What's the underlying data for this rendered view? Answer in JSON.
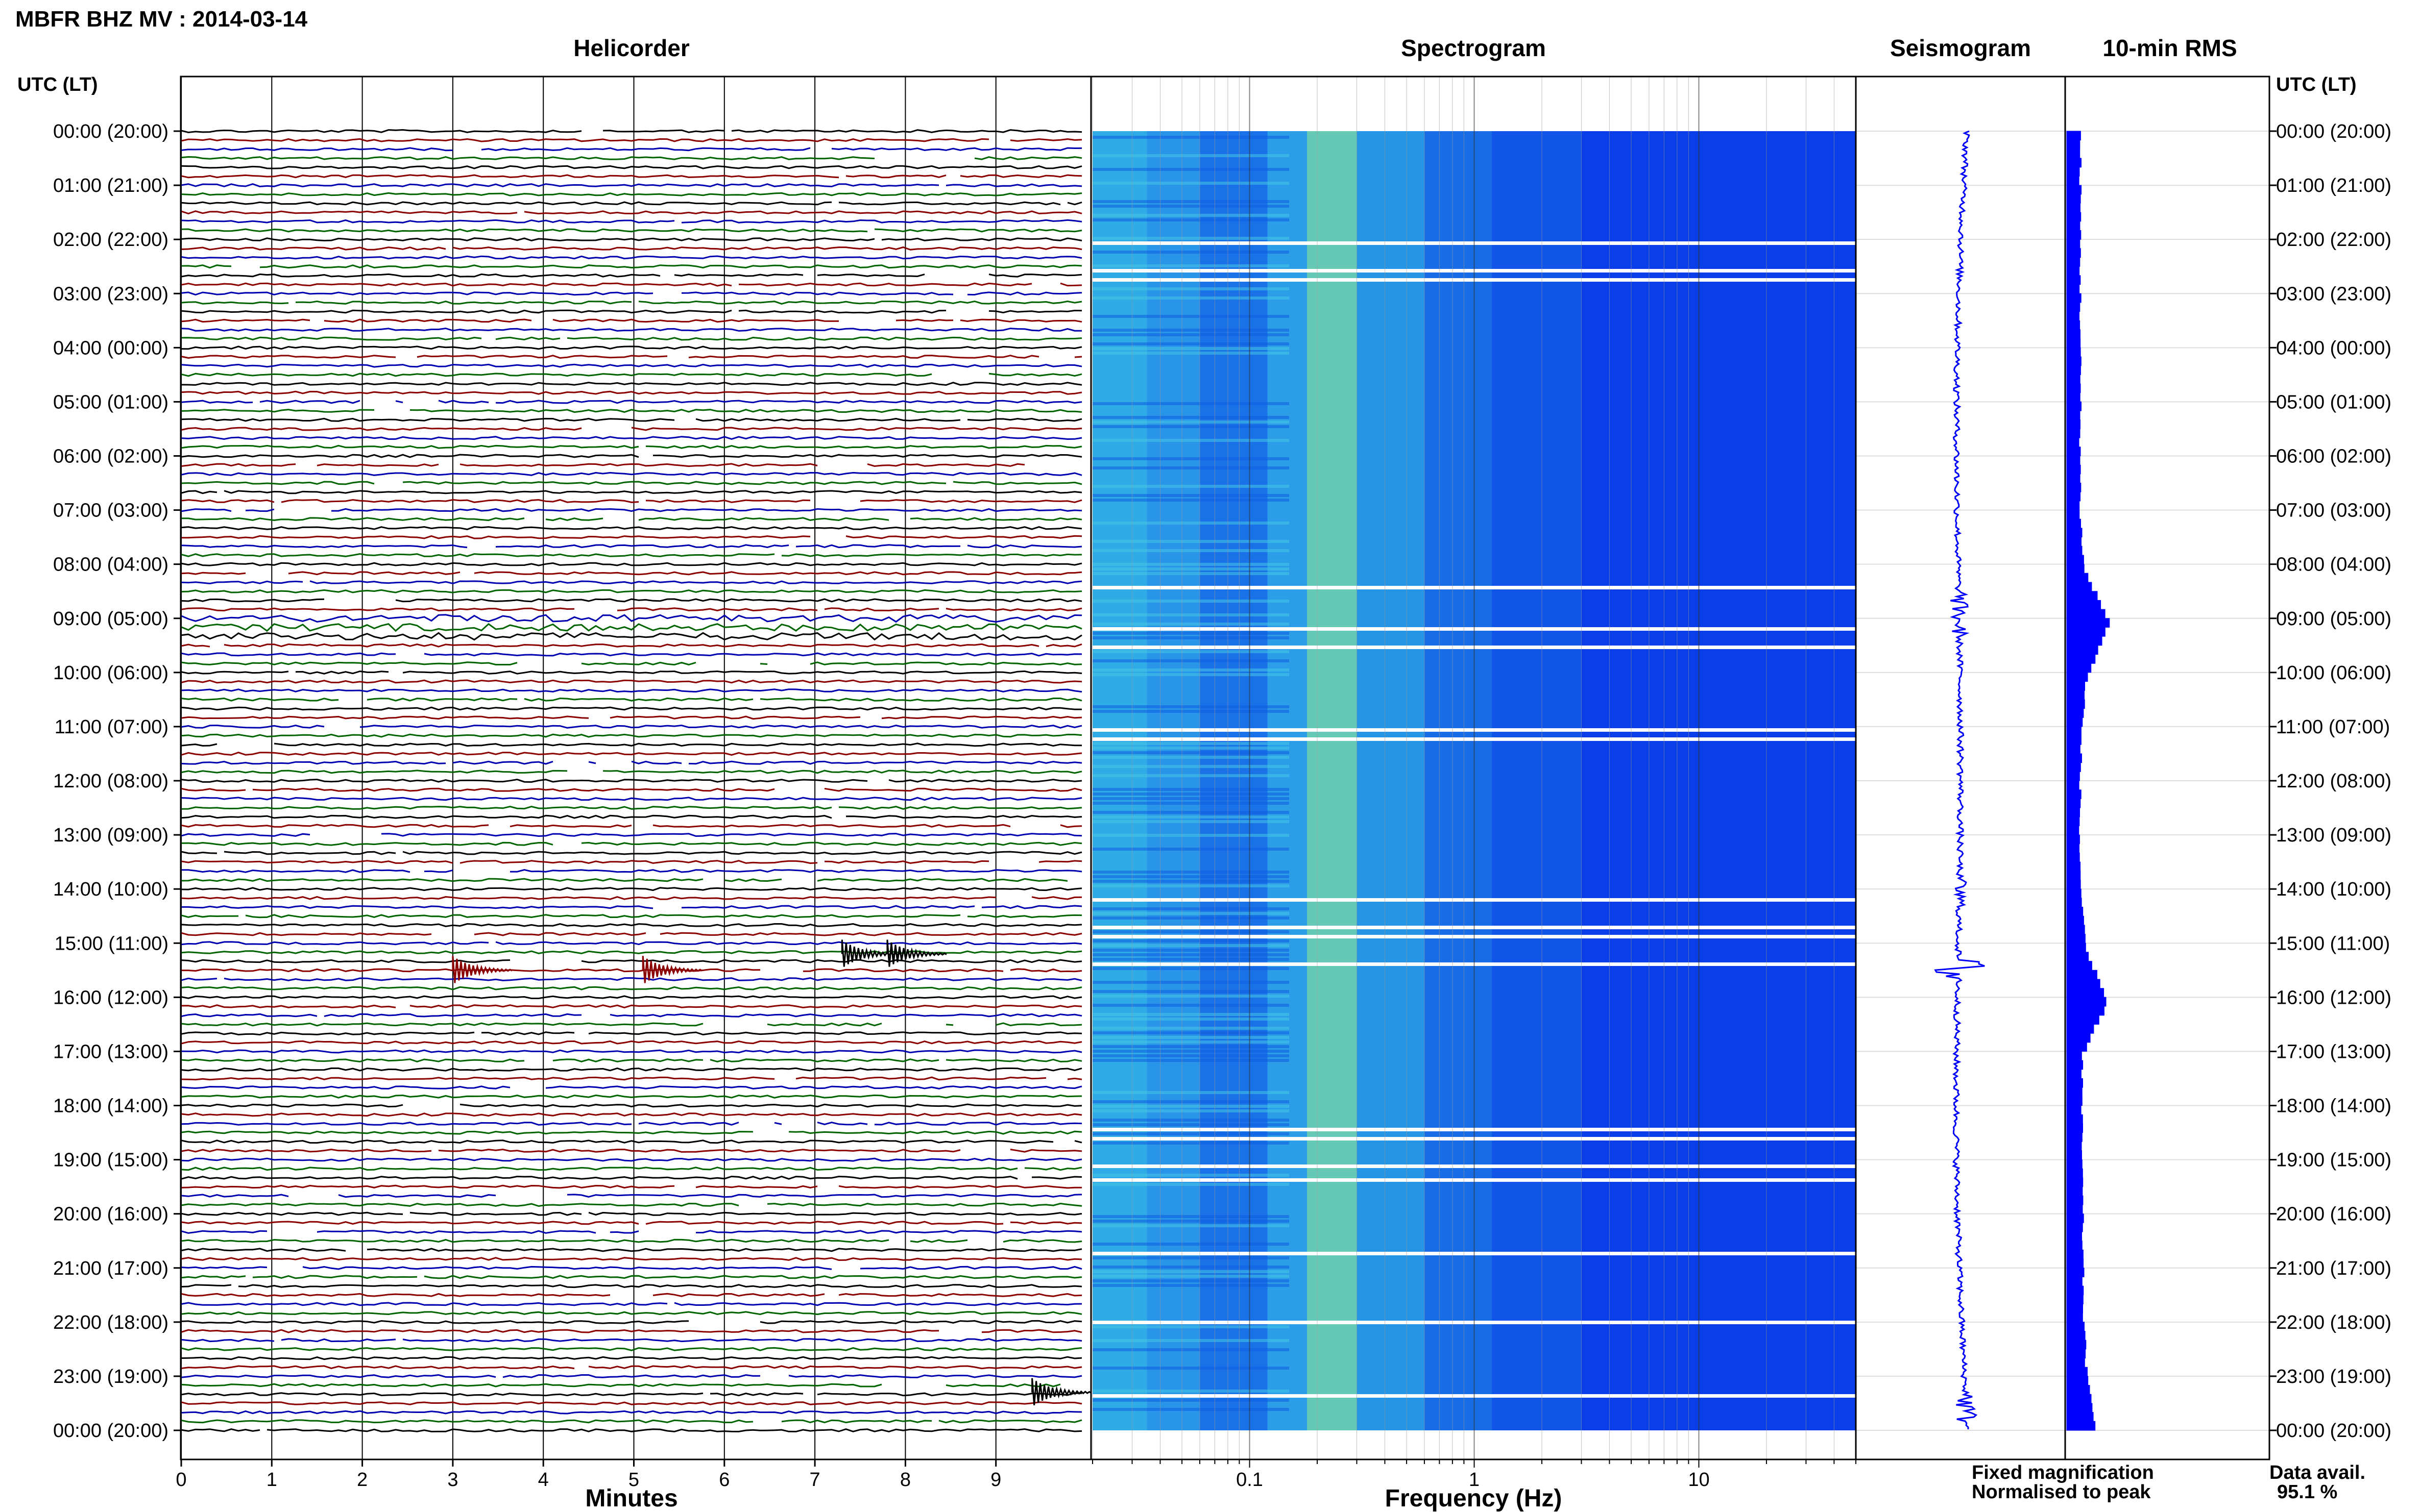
{
  "title": "MBFR BHZ MV : 2014-03-14",
  "time_axis": {
    "header_left": "UTC (LT)",
    "header_right": "UTC (LT)",
    "labels": [
      "00:00 (20:00)",
      "01:00 (21:00)",
      "02:00 (22:00)",
      "03:00 (23:00)",
      "04:00 (00:00)",
      "05:00 (01:00)",
      "06:00 (02:00)",
      "07:00 (03:00)",
      "08:00 (04:00)",
      "09:00 (05:00)",
      "10:00 (06:00)",
      "11:00 (07:00)",
      "12:00 (08:00)",
      "13:00 (09:00)",
      "14:00 (10:00)",
      "15:00 (11:00)",
      "16:00 (12:00)",
      "17:00 (13:00)",
      "18:00 (14:00)",
      "19:00 (15:00)",
      "20:00 (16:00)",
      "21:00 (17:00)",
      "22:00 (18:00)",
      "23:00 (19:00)",
      "00:00 (20:00)"
    ]
  },
  "panels": {
    "helicorder": {
      "title": "Helicorder",
      "xlabel": "Minutes",
      "xticks": [
        "0",
        "1",
        "2",
        "3",
        "4",
        "5",
        "6",
        "7",
        "8",
        "9"
      ],
      "trace_colors": [
        "#000000",
        "#8b0000",
        "#0000b0",
        "#006400"
      ],
      "events": [
        {
          "hour": 15.2,
          "minute": 7.3,
          "color": "#000000"
        },
        {
          "hour": 15.2,
          "minute": 7.8,
          "color": "#000000"
        },
        {
          "hour": 15.5,
          "minute": 5.1,
          "color": "#8b0000"
        },
        {
          "hour": 15.5,
          "minute": 3.0,
          "color": "#8b0000"
        },
        {
          "hour": 23.3,
          "minute": 9.4,
          "color": "#000000"
        }
      ]
    },
    "spectrogram": {
      "title": "Spectrogram",
      "xlabel": "Frequency (Hz)",
      "xticks": [
        "0.1",
        "1",
        "10"
      ],
      "xscale": "log",
      "xlim": [
        0.02,
        50
      ]
    },
    "seismogram": {
      "title": "Seismogram",
      "color": "#0000ff"
    },
    "rms": {
      "title": "10-min RMS",
      "color": "#0000ff"
    }
  },
  "legend": {
    "fixed": "Fixed magnification",
    "normalised": "Normalised to peak",
    "fixed_color": "#0000ff",
    "normalised_color": "#ff0000"
  },
  "data_avail": {
    "label": "Data avail.",
    "value": "95.1 %"
  },
  "chart_data": {
    "type": "line",
    "title": "MBFR BHZ MV : 2014-03-14",
    "rms_hourly": [
      0.3,
      0.3,
      0.3,
      0.3,
      0.3,
      0.3,
      0.3,
      0.3,
      0.38,
      0.95,
      0.45,
      0.32,
      0.3,
      0.28,
      0.32,
      0.4,
      0.9,
      0.35,
      0.33,
      0.34,
      0.35,
      0.36,
      0.38,
      0.45,
      0.7
    ]
  }
}
